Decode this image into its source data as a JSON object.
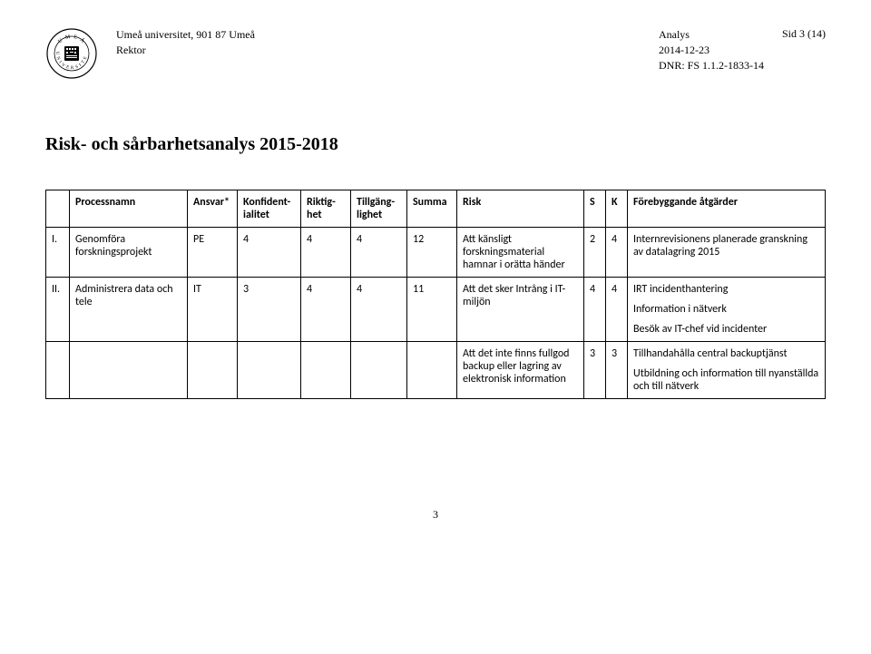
{
  "header": {
    "org_line1": "Umeå universitet, 901 87 Umeå",
    "org_line2": "Rektor",
    "doc_type": "Analys",
    "date": "2014-12-23",
    "dnr": "DNR: FS 1.1.2-1833-14",
    "page_label": "Sid 3 (14)"
  },
  "title": "Risk- och sårbarhetsanalys 2015-2018",
  "table": {
    "columns": {
      "num": "",
      "process": "Processnamn",
      "ansvar": "Ansvar*",
      "konf": "Konfident-ialitet",
      "riktig": "Riktig-het",
      "tillg": "Tillgäng-lighet",
      "summa": "Summa",
      "risk": "Risk",
      "s": "S",
      "k": "K",
      "atg": "Förebyggande åtgärder"
    },
    "rows": [
      {
        "num": "I.",
        "process": "Genomföra forskningsprojekt",
        "ansvar": "PE",
        "konf": "4",
        "riktig": "4",
        "tillg": "4",
        "summa": "12",
        "risk": "Att känsligt forskningsmaterial hamnar i orätta händer",
        "s": "2",
        "k": "4",
        "atg": [
          "Internrevisionens planerade granskning av datalagring 2015"
        ]
      },
      {
        "num": "II.",
        "process": "Administrera data och tele",
        "ansvar": "IT",
        "konf": "3",
        "riktig": "4",
        "tillg": "4",
        "summa": "11",
        "risk": "Att det sker Intrång i IT-miljön",
        "s": "4",
        "k": "4",
        "atg": [
          "IRT incidenthantering",
          "Information i nätverk",
          "Besök av IT-chef vid incidenter"
        ]
      },
      {
        "num": "",
        "process": "",
        "ansvar": "",
        "konf": "",
        "riktig": "",
        "tillg": "",
        "summa": "",
        "risk": "Att det inte finns fullgod backup eller lagring av elektronisk information",
        "s": "3",
        "k": "3",
        "atg": [
          "Tillhandahålla central backuptjänst",
          "Utbildning och information till nyanställda och till nätverk"
        ]
      }
    ]
  },
  "footer": {
    "page_num": "3"
  }
}
